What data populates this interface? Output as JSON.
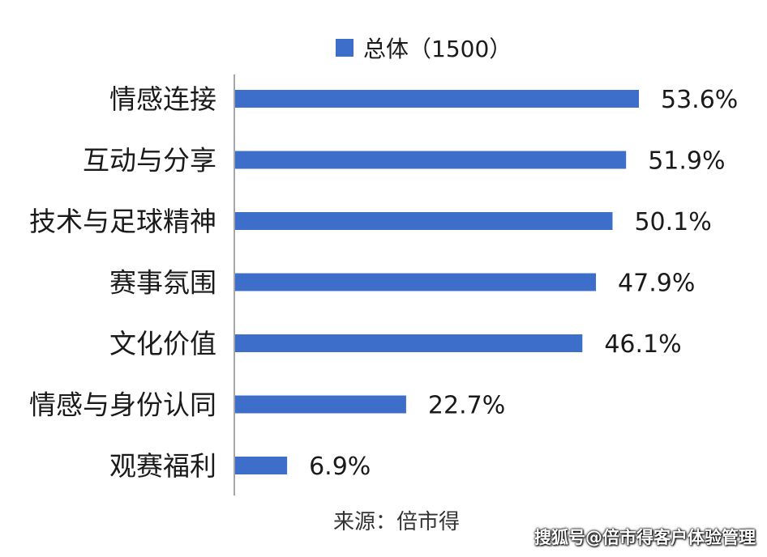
{
  "chart_data": {
    "type": "bar",
    "orientation": "horizontal",
    "legend_position": "top-center",
    "grid": false,
    "categories": [
      "情感连接",
      "互动与分享",
      "技术与足球精神",
      "赛事氛围",
      "文化价值",
      "情感与身份认同",
      "观赛福利"
    ],
    "series": [
      {
        "name": "总体（1500）",
        "color": "#3d6ec9",
        "values": [
          53.6,
          51.9,
          50.1,
          47.9,
          46.1,
          22.7,
          6.9
        ],
        "labels": [
          "53.6%",
          "51.9%",
          "50.1%",
          "47.9%",
          "46.1%",
          "22.7%",
          "6.9%"
        ]
      }
    ],
    "xlim": [
      0,
      60
    ]
  },
  "source": "来源：倍市得",
  "watermark": "搜狐号@倍市得客户体验管理"
}
